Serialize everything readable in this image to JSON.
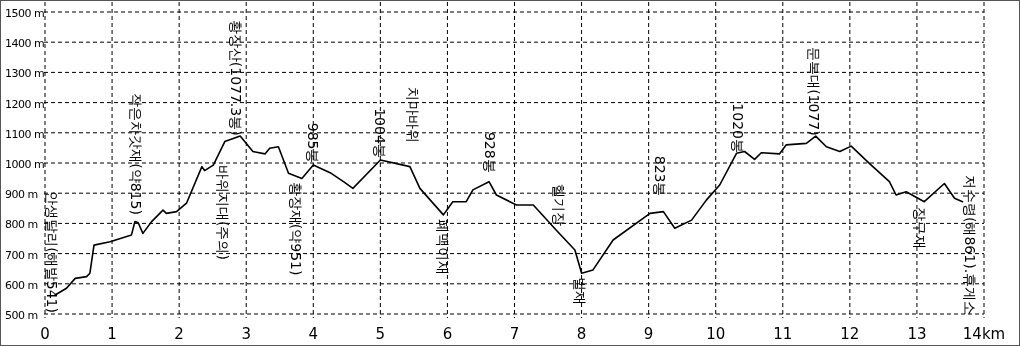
{
  "chart_data": {
    "type": "line",
    "x": [
      0.15,
      0.32,
      0.45,
      0.62,
      0.67,
      0.73,
      0.97,
      1.29,
      1.34,
      1.39,
      1.46,
      1.59,
      1.76,
      1.81,
      1.96,
      2.11,
      2.34,
      2.38,
      2.51,
      2.68,
      2.91,
      3.1,
      3.28,
      3.35,
      3.48,
      3.63,
      3.83,
      4.0,
      4.25,
      4.45,
      4.59,
      5.0,
      5.44,
      5.59,
      5.94,
      6.08,
      6.28,
      6.38,
      6.62,
      6.73,
      7.03,
      7.28,
      7.62,
      7.9,
      8.0,
      8.17,
      8.47,
      9.02,
      9.22,
      9.39,
      9.64,
      9.86,
      10.06,
      10.31,
      10.43,
      10.58,
      10.68,
      10.95,
      11.05,
      11.35,
      11.49,
      11.65,
      11.85,
      12.02,
      12.29,
      12.59,
      12.69,
      12.84,
      13.11,
      13.41,
      13.56,
      13.68
    ],
    "values": [
      563,
      585,
      618,
      624,
      635,
      728,
      739,
      762,
      806,
      802,
      767,
      806,
      844,
      833,
      839,
      867,
      988,
      975,
      993,
      1071,
      1089,
      1038,
      1030,
      1049,
      1054,
      966,
      949,
      993,
      968,
      938,
      916,
      1010,
      988,
      916,
      828,
      872,
      872,
      911,
      938,
      894,
      861,
      861,
      778,
      712,
      635,
      646,
      745,
      833,
      839,
      784,
      811,
      877,
      927,
      1032,
      1038,
      1012,
      1034,
      1030,
      1060,
      1065,
      1089,
      1054,
      1038,
      1056,
      999,
      938,
      894,
      905,
      872,
      932,
      883,
      872
    ],
    "color": "#000000",
    "line_style": "solid",
    "grid": true,
    "xlim": [
      0,
      14
    ],
    "ylim": [
      500,
      1500
    ],
    "xticks": [
      0,
      1,
      2,
      3,
      4,
      5,
      6,
      7,
      8,
      9,
      10,
      11,
      12,
      13,
      {
        "value": 14,
        "label": "14km"
      }
    ],
    "yticks": [
      {
        "value": 500,
        "label": "500 m"
      },
      {
        "value": 600,
        "label": "600 m"
      },
      {
        "value": 700,
        "label": "700 m"
      },
      {
        "value": 800,
        "label": "800 m"
      },
      {
        "value": 900,
        "label": "900 m"
      },
      {
        "value": 1000,
        "label": "1000 m"
      },
      {
        "value": 1100,
        "label": "1100 m"
      },
      {
        "value": 1200,
        "label": "1200 m"
      },
      {
        "value": 1300,
        "label": "1300 m"
      },
      {
        "value": 1400,
        "label": "1400 m"
      },
      {
        "value": 1500,
        "label": "1500 m"
      }
    ],
    "annotations": [
      "안생달리(해발541)",
      {
        "text": "작은차갓재(약815)",
        "x": 1.36,
        "y": 815
      },
      {
        "text": "황장산(1077.3봉)",
        "x": 2.85,
        "y": 1077.3
      },
      "바위지대(주의)",
      {
        "text": "985봉",
        "x": 4.0,
        "y": 985
      },
      {
        "text": "황장재(약951)",
        "x": 3.74,
        "y": 951
      },
      {
        "text": "1004봉",
        "x": 5.0,
        "y": 1004
      },
      {
        "text": "치마바위",
        "x": 5.48,
        "y": 988
      },
      {
        "text": "폐맥이재",
        "x": 5.93,
        "y": 828
      },
      {
        "text": "928봉",
        "x": 6.63,
        "y": 928
      },
      {
        "text": "헬기장",
        "x": 7.67,
        "y": 778
      },
      {
        "text": "벌재",
        "x": 7.97,
        "y": 635
      },
      {
        "text": "823봉",
        "x": 9.17,
        "y": 823
      },
      {
        "text": "1020봉",
        "x": 10.33,
        "y": 1020
      },
      {
        "text": "문복대(1077)",
        "x": 11.47,
        "y": 1077
      },
      {
        "text": "장구재",
        "x": 13.04,
        "y": 880
      },
      "저수령(해861).휴게소"
    ]
  }
}
